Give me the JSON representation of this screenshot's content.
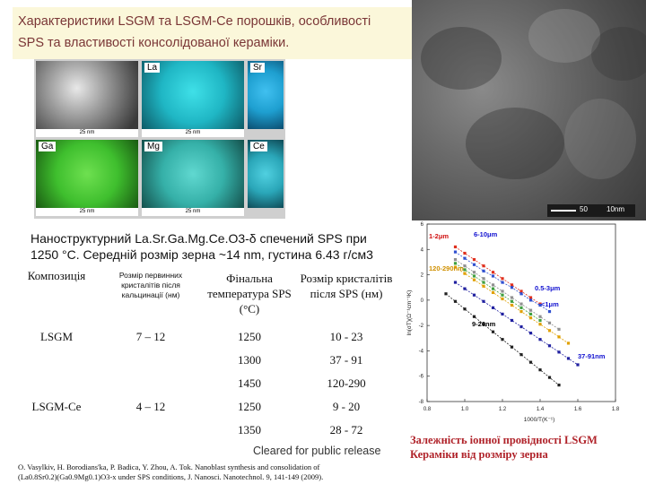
{
  "title": {
    "line1": "Характеристики LSGM та LSGM-Ce порошків, особливості",
    "line2": "SPS та властивості консолідованої кераміки."
  },
  "maps": {
    "tiles": [
      {
        "label": "",
        "color": "#9a9a9a",
        "scale": "25 nm"
      },
      {
        "label": "La",
        "color": "#1fb6c4",
        "scale": "25 nm"
      },
      {
        "label": "Sr",
        "color": "#1e9fd0",
        "scale": "25 nm"
      },
      {
        "label": "Ga",
        "color": "#3fbf2e",
        "scale": "25 nm"
      },
      {
        "label": "Mg",
        "color": "#35b0a8",
        "scale": "25 nm"
      },
      {
        "label": "Ce",
        "color": "#2aa6b8",
        "scale": "25 nm"
      }
    ]
  },
  "tem": {
    "scale_left": "50",
    "scale_right": "10nm"
  },
  "description": {
    "line1": "Наноструктурний La.Sr.Ga.Mg.Ce.O3-δ спечений SPS при",
    "line2": "1250 °C. Середній розмір зерна ~14 nm, густина 6.43 г/см3"
  },
  "table": {
    "headers": [
      "Композиція",
      "Розмір первинних кристалітів після кальцинації (нм)",
      "Фінальна температура SPS (°C)",
      "Розмір кристалітів після SPS (нм)"
    ],
    "rows": [
      {
        "comp": "LSGM",
        "primary": "7 – 12",
        "temp": "1250",
        "size": "10 - 23"
      },
      {
        "comp": "",
        "primary": "",
        "temp": "1300",
        "size": "37 - 91"
      },
      {
        "comp": "",
        "primary": "",
        "temp": "1450",
        "size": "120-290"
      },
      {
        "comp": "LSGM-Ce",
        "primary": "4 – 12",
        "temp": "1250",
        "size": "9 - 20"
      },
      {
        "comp": "",
        "primary": "",
        "temp": "1350",
        "size": "28 - 72"
      }
    ]
  },
  "cleared": "Cleared for public release",
  "reference": {
    "line1": "O. Vasylkiv, H. Borodians'ka, P. Badica, Y. Zhou, A. Tok. Nanoblast synthesis and consolidation of",
    "line2": "(La0.8Sr0.2)(Ga0.9Mg0.1)O3-x under SPS conditions, J. Nanosci. Nanotechnol. 9, 141-149 (2009)."
  },
  "caption": {
    "line1": "Залежність іонної провідності LSGM",
    "line2": "Кераміки від розміру зерна"
  },
  "chart_data": {
    "type": "scatter",
    "xlabel": "1000/T(K⁻¹)",
    "ylabel": "ln(σT)(Ω⁻¹cm⁻¹K)",
    "xlim": [
      0.8,
      1.8
    ],
    "ylim": [
      -8,
      6
    ],
    "xticks": [
      "0.8",
      "1.0",
      "1.2",
      "1.4",
      "1.6",
      "1.8"
    ],
    "yticks": [
      "6",
      "4",
      "2",
      "0",
      "-2",
      "-4",
      "-6",
      "-8"
    ],
    "annotations": [
      {
        "text": "1-2μm",
        "color": "#d01010"
      },
      {
        "text": "6-10μm",
        "color": "#1010d0"
      },
      {
        "text": "120-290nm",
        "color": "#d09000"
      },
      {
        "text": "0.5-3μm",
        "color": "#1010d0"
      },
      {
        "text": "<1μm",
        "color": "#1010d0"
      },
      {
        "text": "9-20nm",
        "color": "#000000"
      },
      {
        "text": "37-91nm",
        "color": "#1010d0"
      }
    ],
    "series": [
      {
        "color": "#e0301e",
        "x": [
          0.95,
          1.0,
          1.05,
          1.1,
          1.15,
          1.2,
          1.25,
          1.3,
          1.35,
          1.4
        ],
        "y": [
          4.2,
          3.7,
          3.2,
          2.7,
          2.2,
          1.7,
          1.2,
          0.7,
          0.2,
          -0.3
        ]
      },
      {
        "color": "#3050d0",
        "x": [
          0.95,
          1.0,
          1.05,
          1.1,
          1.15,
          1.2,
          1.25,
          1.3,
          1.35,
          1.4,
          1.45
        ],
        "y": [
          3.8,
          3.3,
          2.8,
          2.3,
          1.9,
          1.4,
          1.0,
          0.5,
          0.0,
          -0.4,
          -0.9
        ]
      },
      {
        "color": "#909090",
        "x": [
          0.95,
          1.0,
          1.05,
          1.1,
          1.15,
          1.2,
          1.25,
          1.3,
          1.35,
          1.4,
          1.45,
          1.5
        ],
        "y": [
          3.2,
          2.7,
          2.2,
          1.7,
          1.2,
          0.7,
          0.2,
          -0.3,
          -0.8,
          -1.3,
          -1.8,
          -2.3
        ]
      },
      {
        "color": "#e0a000",
        "x": [
          0.95,
          1.0,
          1.05,
          1.1,
          1.15,
          1.2,
          1.25,
          1.3,
          1.35,
          1.4,
          1.45,
          1.5,
          1.55
        ],
        "y": [
          2.6,
          2.1,
          1.6,
          1.1,
          0.6,
          0.1,
          -0.4,
          -0.9,
          -1.4,
          -1.9,
          -2.4,
          -2.9,
          -3.4
        ]
      },
      {
        "color": "#40a040",
        "x": [
          0.95,
          1.0,
          1.05,
          1.1,
          1.15,
          1.2,
          1.25,
          1.3,
          1.35,
          1.4
        ],
        "y": [
          2.9,
          2.4,
          1.9,
          1.4,
          0.9,
          0.4,
          -0.1,
          -0.6,
          -1.1,
          -1.6
        ]
      },
      {
        "color": "#2020a0",
        "x": [
          0.95,
          1.0,
          1.05,
          1.1,
          1.15,
          1.2,
          1.25,
          1.3,
          1.35,
          1.4,
          1.45,
          1.5,
          1.55,
          1.6
        ],
        "y": [
          1.4,
          0.9,
          0.4,
          -0.1,
          -0.6,
          -1.1,
          -1.6,
          -2.1,
          -2.6,
          -3.1,
          -3.6,
          -4.1,
          -4.6,
          -5.1
        ]
      },
      {
        "color": "#202020",
        "x": [
          0.9,
          0.95,
          1.0,
          1.05,
          1.1,
          1.15,
          1.2,
          1.25,
          1.3,
          1.35,
          1.4,
          1.45,
          1.5
        ],
        "y": [
          0.5,
          -0.1,
          -0.7,
          -1.3,
          -1.9,
          -2.5,
          -3.1,
          -3.7,
          -4.3,
          -4.9,
          -5.5,
          -6.1,
          -6.7
        ]
      }
    ]
  }
}
